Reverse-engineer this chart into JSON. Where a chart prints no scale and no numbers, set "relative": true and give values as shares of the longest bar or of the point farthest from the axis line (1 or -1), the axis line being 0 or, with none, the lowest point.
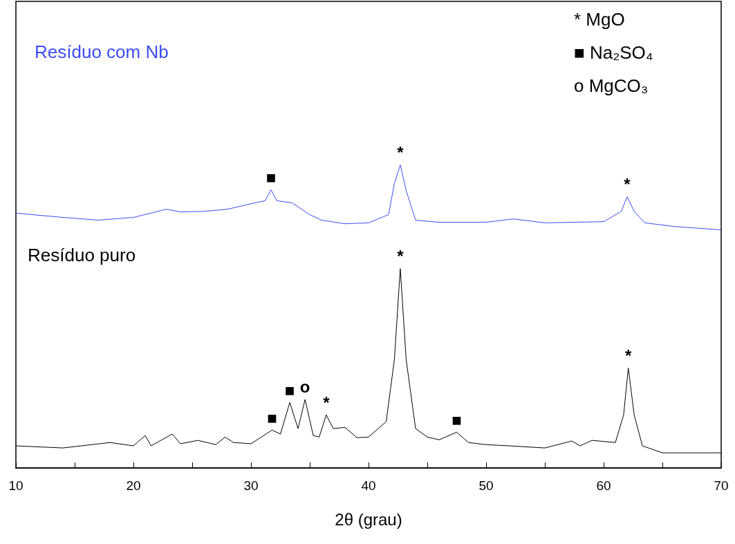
{
  "chart_data": {
    "type": "line",
    "relative": true,
    "xlabel": "2θ (grau)",
    "xlim": [
      10,
      70
    ],
    "xticks": [
      10,
      20,
      30,
      40,
      50,
      60,
      70
    ],
    "grid": false,
    "legend": false,
    "line_style": "solid",
    "series": [
      {
        "name": "Resíduo com Nb",
        "color": "#3d4cf5",
        "x": [
          10,
          14,
          17,
          20,
          22.8,
          24,
          26,
          28,
          30,
          31.2,
          31.7,
          32.2,
          33.5,
          35,
          36,
          38,
          40,
          41.7,
          42.2,
          42.7,
          43.2,
          44,
          46,
          50,
          52.3,
          55,
          60,
          61.5,
          62,
          62.6,
          63.5,
          66,
          70
        ],
        "values": [
          0.841,
          0.827,
          0.818,
          0.827,
          0.854,
          0.845,
          0.847,
          0.854,
          0.872,
          0.882,
          0.918,
          0.882,
          0.875,
          0.836,
          0.818,
          0.806,
          0.809,
          0.836,
          0.939,
          1,
          0.916,
          0.818,
          0.811,
          0.811,
          0.822,
          0.809,
          0.813,
          0.847,
          0.895,
          0.847,
          0.809,
          0.797,
          0.786
        ]
      },
      {
        "name": "Resíduo puro",
        "color": "#000000",
        "x": [
          10,
          14,
          18,
          20,
          21,
          21.5,
          23.3,
          24,
          25.5,
          27,
          27.8,
          28.5,
          30,
          31.8,
          32.5,
          33.3,
          34,
          34.6,
          35.3,
          35.8,
          36.4,
          37,
          38,
          39,
          40,
          41.5,
          42.2,
          42.7,
          43.2,
          44,
          45,
          46,
          47.5,
          48.5,
          50,
          52,
          55,
          57.3,
          58,
          59,
          61,
          61.7,
          62.1,
          62.6,
          63.3,
          65,
          70
        ],
        "values": [
          0.073,
          0.066,
          0.084,
          0.073,
          0.107,
          0.073,
          0.112,
          0.08,
          0.091,
          0.077,
          0.102,
          0.084,
          0.08,
          0.125,
          0.112,
          0.216,
          0.13,
          0.226,
          0.107,
          0.102,
          0.175,
          0.13,
          0.134,
          0.1,
          0.102,
          0.153,
          0.358,
          0.658,
          0.358,
          0.13,
          0.102,
          0.093,
          0.118,
          0.084,
          0.077,
          0.073,
          0.066,
          0.089,
          0.073,
          0.091,
          0.084,
          0.175,
          0.33,
          0.175,
          0.073,
          0.05,
          0.05
        ]
      }
    ],
    "annotations": [
      {
        "text": "■",
        "x": 31.7,
        "y": 0.918
      },
      {
        "text": "*",
        "x": 42.7,
        "y": 1
      },
      {
        "text": "*",
        "x": 62,
        "y": 0.895
      },
      {
        "text": "*",
        "x": 42.7,
        "y": 0.658
      },
      {
        "text": "*",
        "x": 62.1,
        "y": 0.33
      },
      {
        "text": "■",
        "x": 31.8,
        "y": 0.125
      },
      {
        "text": "■",
        "x": 33.3,
        "y": 0.216
      },
      {
        "text": "o",
        "x": 34.6,
        "y": 0.226
      },
      {
        "text": "*",
        "x": 36.4,
        "y": 0.175
      },
      {
        "text": "■",
        "x": 47.5,
        "y": 0.118
      },
      "* MgO",
      "■ Na₂SO₄",
      "o MgCO₃"
    ]
  }
}
